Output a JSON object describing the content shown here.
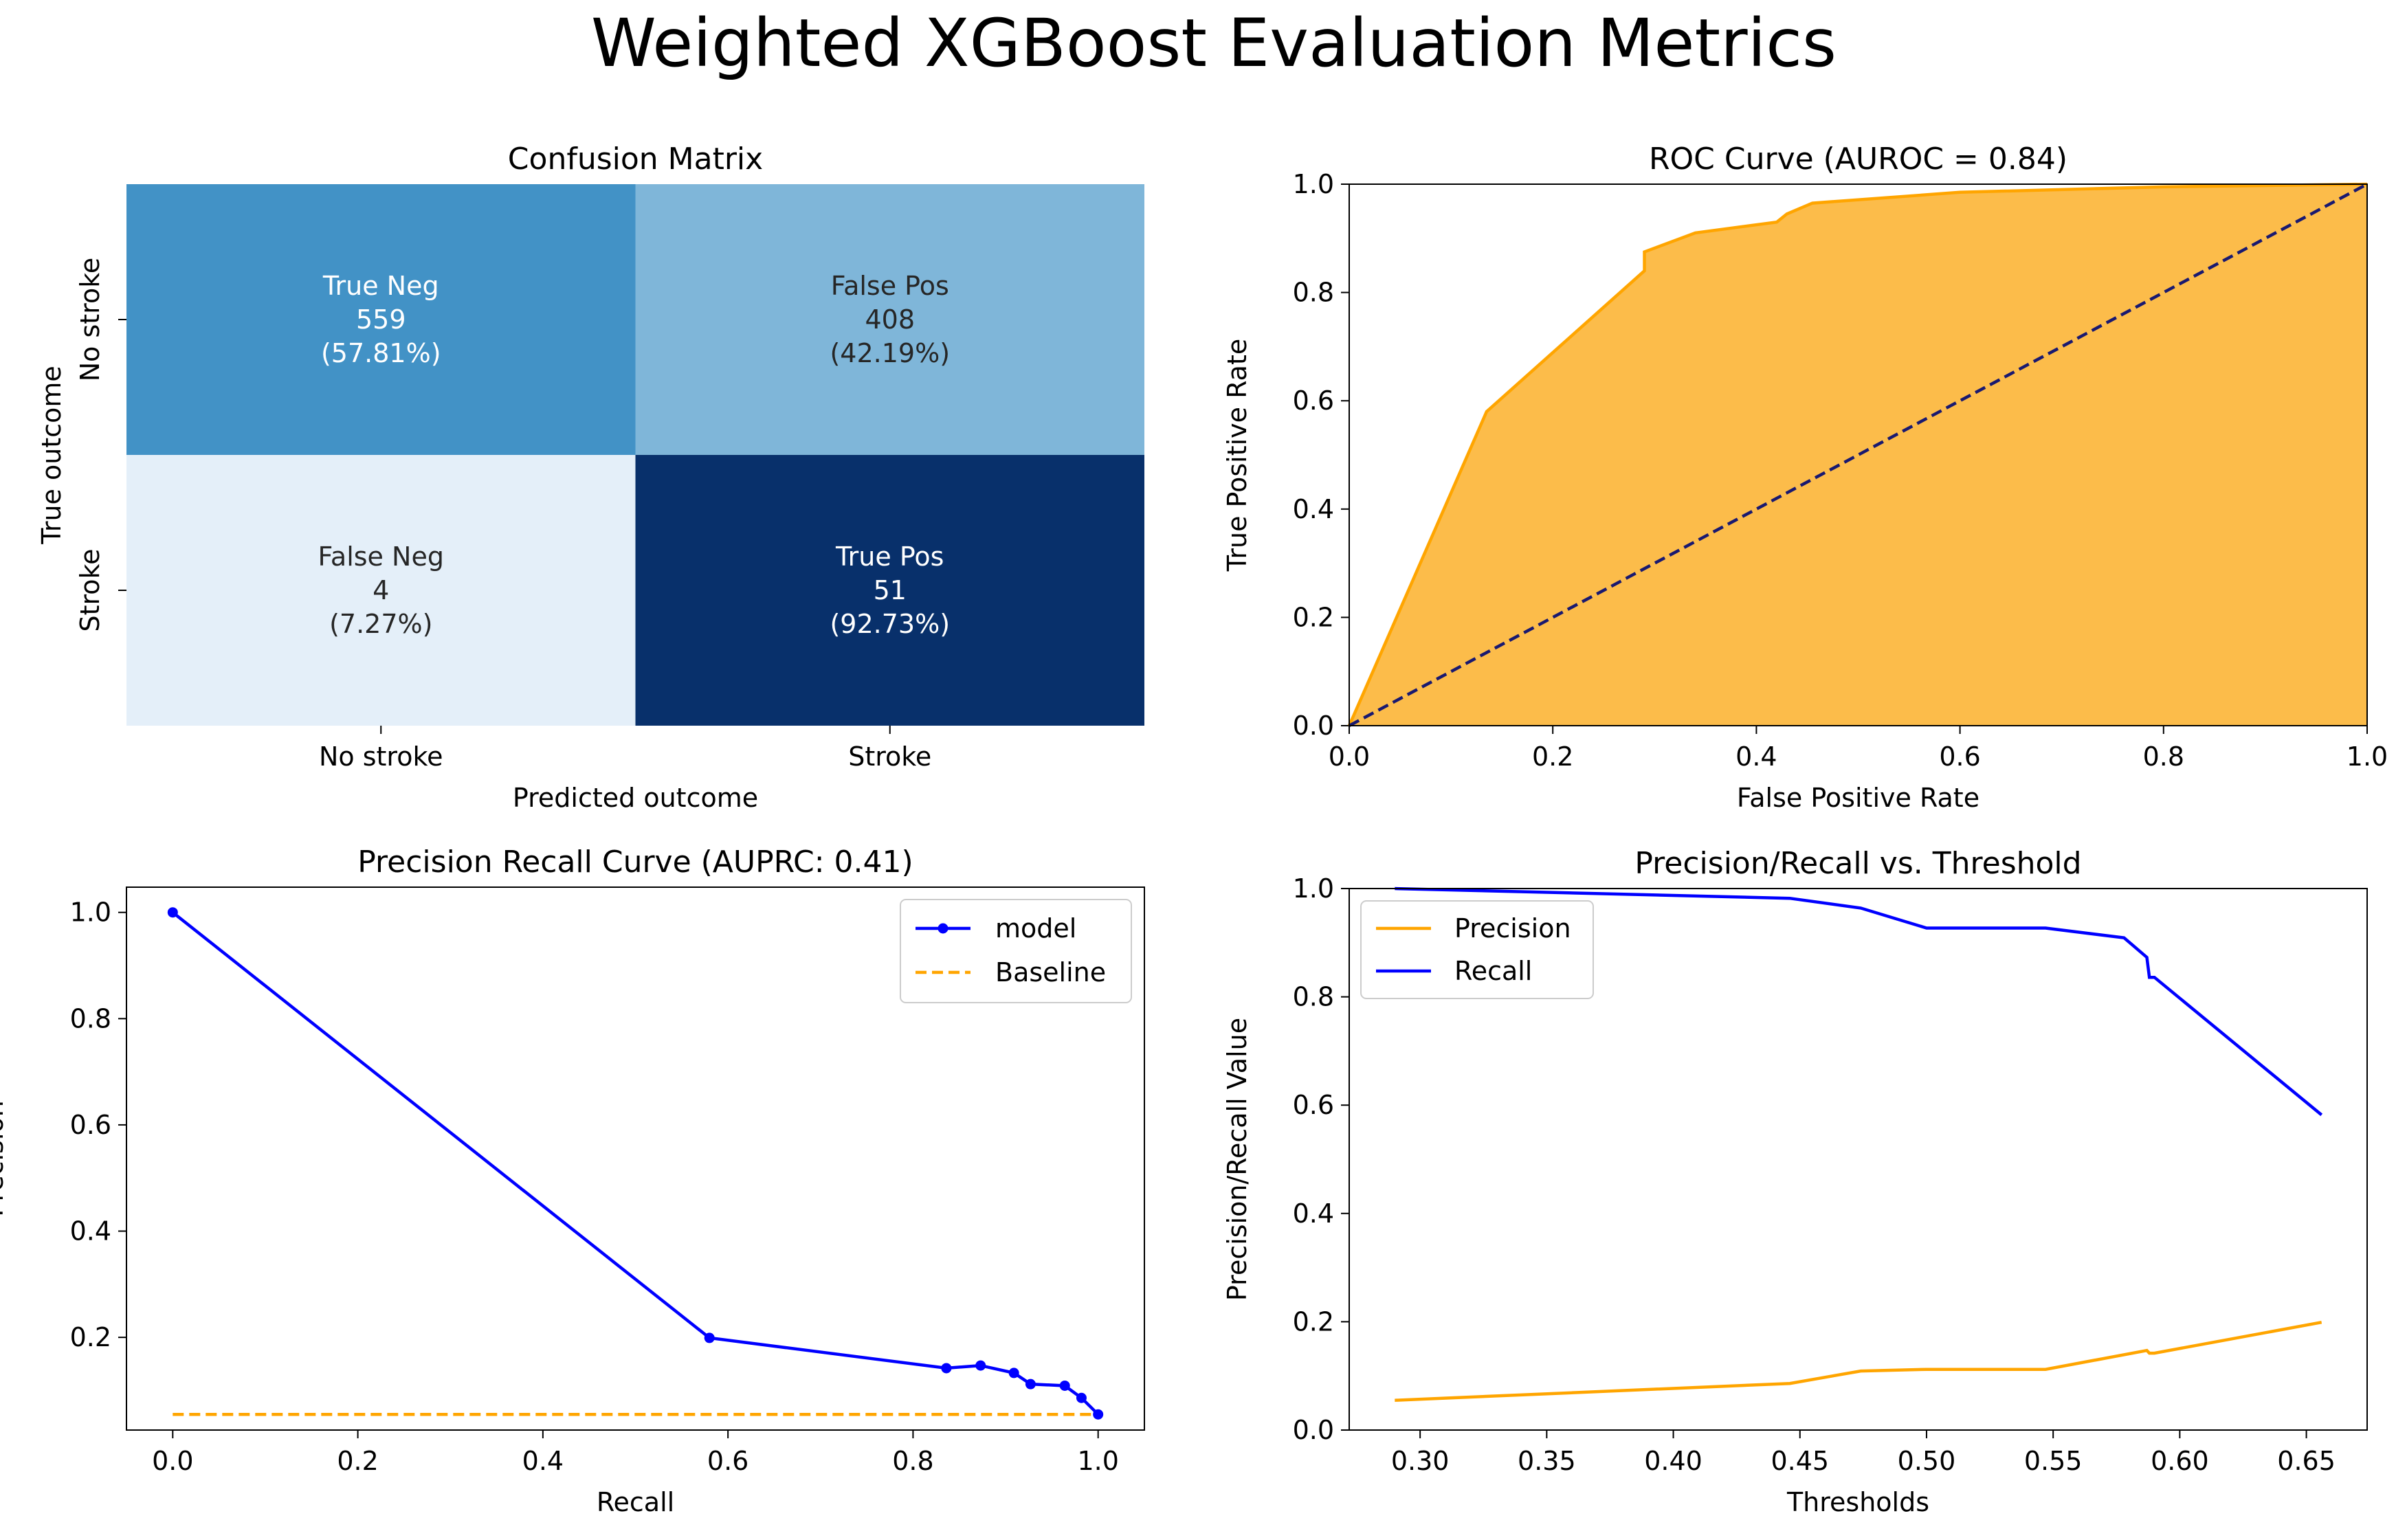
{
  "figure": {
    "title": "Weighted XGBoost Evaluation Metrics"
  },
  "chart_data": [
    {
      "type": "heatmap",
      "title": "Confusion Matrix",
      "xlabel": "Predicted outcome",
      "ylabel": "True outcome",
      "x_categories": [
        "No stroke",
        "Stroke"
      ],
      "y_categories": [
        "No stroke",
        "Stroke"
      ],
      "cells": [
        {
          "row": 0,
          "col": 0,
          "label": "True Neg",
          "count": "559",
          "percent": "(57.81%)",
          "color": "#4292c6",
          "text_color": "#ffffff"
        },
        {
          "row": 0,
          "col": 1,
          "label": "False Pos",
          "count": "408",
          "percent": "(42.19%)",
          "color": "#7fb6d9",
          "text_color": "#262626"
        },
        {
          "row": 1,
          "col": 0,
          "label": "False Neg",
          "count": "4",
          "percent": "(7.27%)",
          "color": "#e4eff9",
          "text_color": "#262626"
        },
        {
          "row": 1,
          "col": 1,
          "label": "True Pos",
          "count": "51",
          "percent": "(92.73%)",
          "color": "#08306b",
          "text_color": "#ffffff"
        }
      ]
    },
    {
      "type": "area",
      "title": "ROC Curve (AUROC = 0.84)",
      "xlabel": "False Positive Rate",
      "ylabel": "True Positive Rate",
      "xlim": [
        0,
        1
      ],
      "ylim": [
        0,
        1
      ],
      "xticks": [
        "0.0",
        "0.2",
        "0.4",
        "0.6",
        "0.8",
        "1.0"
      ],
      "yticks": [
        "0.0",
        "0.2",
        "0.4",
        "0.6",
        "0.8",
        "1.0"
      ],
      "series": [
        {
          "x": [
            0,
            0.135,
            0.29,
            0.29,
            0.34,
            0.42,
            0.43,
            0.455,
            0.6,
            0.8,
            1.0
          ],
          "y": [
            0,
            0.58,
            0.84,
            0.875,
            0.91,
            0.93,
            0.945,
            0.965,
            0.985,
            0.995,
            1.0
          ],
          "color": "#ffa500",
          "fill": "#fcbc4a"
        },
        {
          "x": [
            0,
            1
          ],
          "y": [
            0,
            1
          ],
          "color": "#191970",
          "dashed": true
        }
      ]
    },
    {
      "type": "line",
      "title": "Precision Recall Curve (AUPRC: 0.41)",
      "xlabel": "Recall",
      "ylabel": "Precision",
      "xlim": [
        -0.05,
        1.05
      ],
      "ylim": [
        0.0255,
        1.0475
      ],
      "xticks": [
        "0.0",
        "0.2",
        "0.4",
        "0.6",
        "0.8",
        "1.0"
      ],
      "yticks": [
        "0.2",
        "0.4",
        "0.6",
        "0.8",
        "1.0"
      ],
      "legend_position": "upper-right",
      "series": [
        {
          "name": "model",
          "color": "#0000ff",
          "markers": true,
          "x": [
            0.0,
            0.58,
            0.836,
            0.873,
            0.909,
            0.927,
            0.964,
            0.982,
            1.0
          ],
          "y": [
            1.0,
            0.199,
            0.142,
            0.147,
            0.133,
            0.112,
            0.109,
            0.086,
            0.055
          ]
        },
        {
          "name": "Baseline",
          "color": "#ffa500",
          "dashed": true,
          "x": [
            0.0,
            1.0
          ],
          "y": [
            0.055,
            0.055
          ]
        }
      ]
    },
    {
      "type": "line",
      "title": "Precision/Recall vs. Threshold",
      "xlabel": "Thresholds",
      "ylabel": "Precision/Recall Value",
      "xlim": [
        0.272,
        0.674
      ],
      "ylim": [
        0,
        1
      ],
      "xticks": [
        "0.30",
        "0.35",
        "0.40",
        "0.45",
        "0.50",
        "0.55",
        "0.60",
        "0.65"
      ],
      "yticks": [
        "0.0",
        "0.2",
        "0.4",
        "0.6",
        "0.8",
        "1.0"
      ],
      "legend_position": "upper-left",
      "series": [
        {
          "name": "Precision",
          "color": "#ffa500",
          "x": [
            0.29,
            0.446,
            0.474,
            0.5,
            0.547,
            0.587,
            0.588,
            0.59,
            0.656
          ],
          "y": [
            0.055,
            0.086,
            0.109,
            0.112,
            0.112,
            0.147,
            0.142,
            0.142,
            0.199
          ]
        },
        {
          "name": "Recall",
          "color": "#0000ff",
          "x": [
            0.29,
            0.446,
            0.474,
            0.5,
            0.547,
            0.578,
            0.587,
            0.588,
            0.59,
            0.656
          ],
          "y": [
            1.0,
            0.982,
            0.964,
            0.927,
            0.927,
            0.909,
            0.873,
            0.836,
            0.836,
            0.582
          ]
        }
      ]
    }
  ]
}
